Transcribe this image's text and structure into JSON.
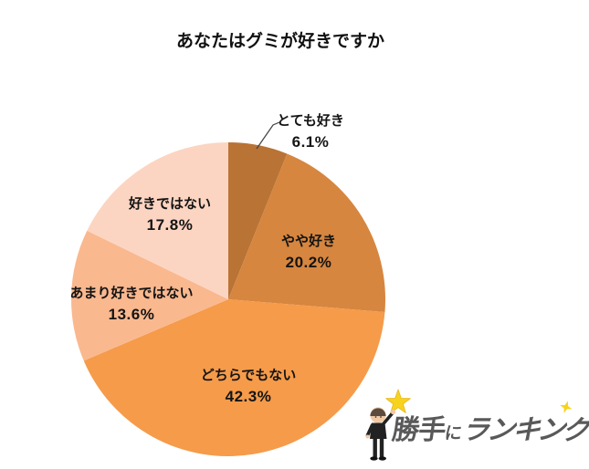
{
  "chart_data": {
    "type": "pie",
    "title": "あなたはグミが好きですか",
    "unit": "%",
    "direction": "clockwise",
    "start_angle_deg": 0,
    "legend": "none",
    "slices": [
      {
        "label": "とても好き",
        "value": 6.1,
        "pct_label": "6.1%",
        "color": "#b97334"
      },
      {
        "label": "やや好き",
        "value": 20.2,
        "pct_label": "20.2%",
        "color": "#d6863f"
      },
      {
        "label": "どちらでもない",
        "value": 42.3,
        "pct_label": "42.3%",
        "color": "#f59b4a"
      },
      {
        "label": "あまり好きではない",
        "value": 13.6,
        "pct_label": "13.6%",
        "color": "#fab88f"
      },
      {
        "label": "好きではない",
        "value": 17.8,
        "pct_label": "17.8%",
        "color": "#fcd5c2"
      }
    ]
  },
  "logo": {
    "text_part1": "勝手",
    "text_part2": "に",
    "text_part3": "ランキング",
    "text_color": "#595959",
    "star_color": "#f8d31d"
  }
}
